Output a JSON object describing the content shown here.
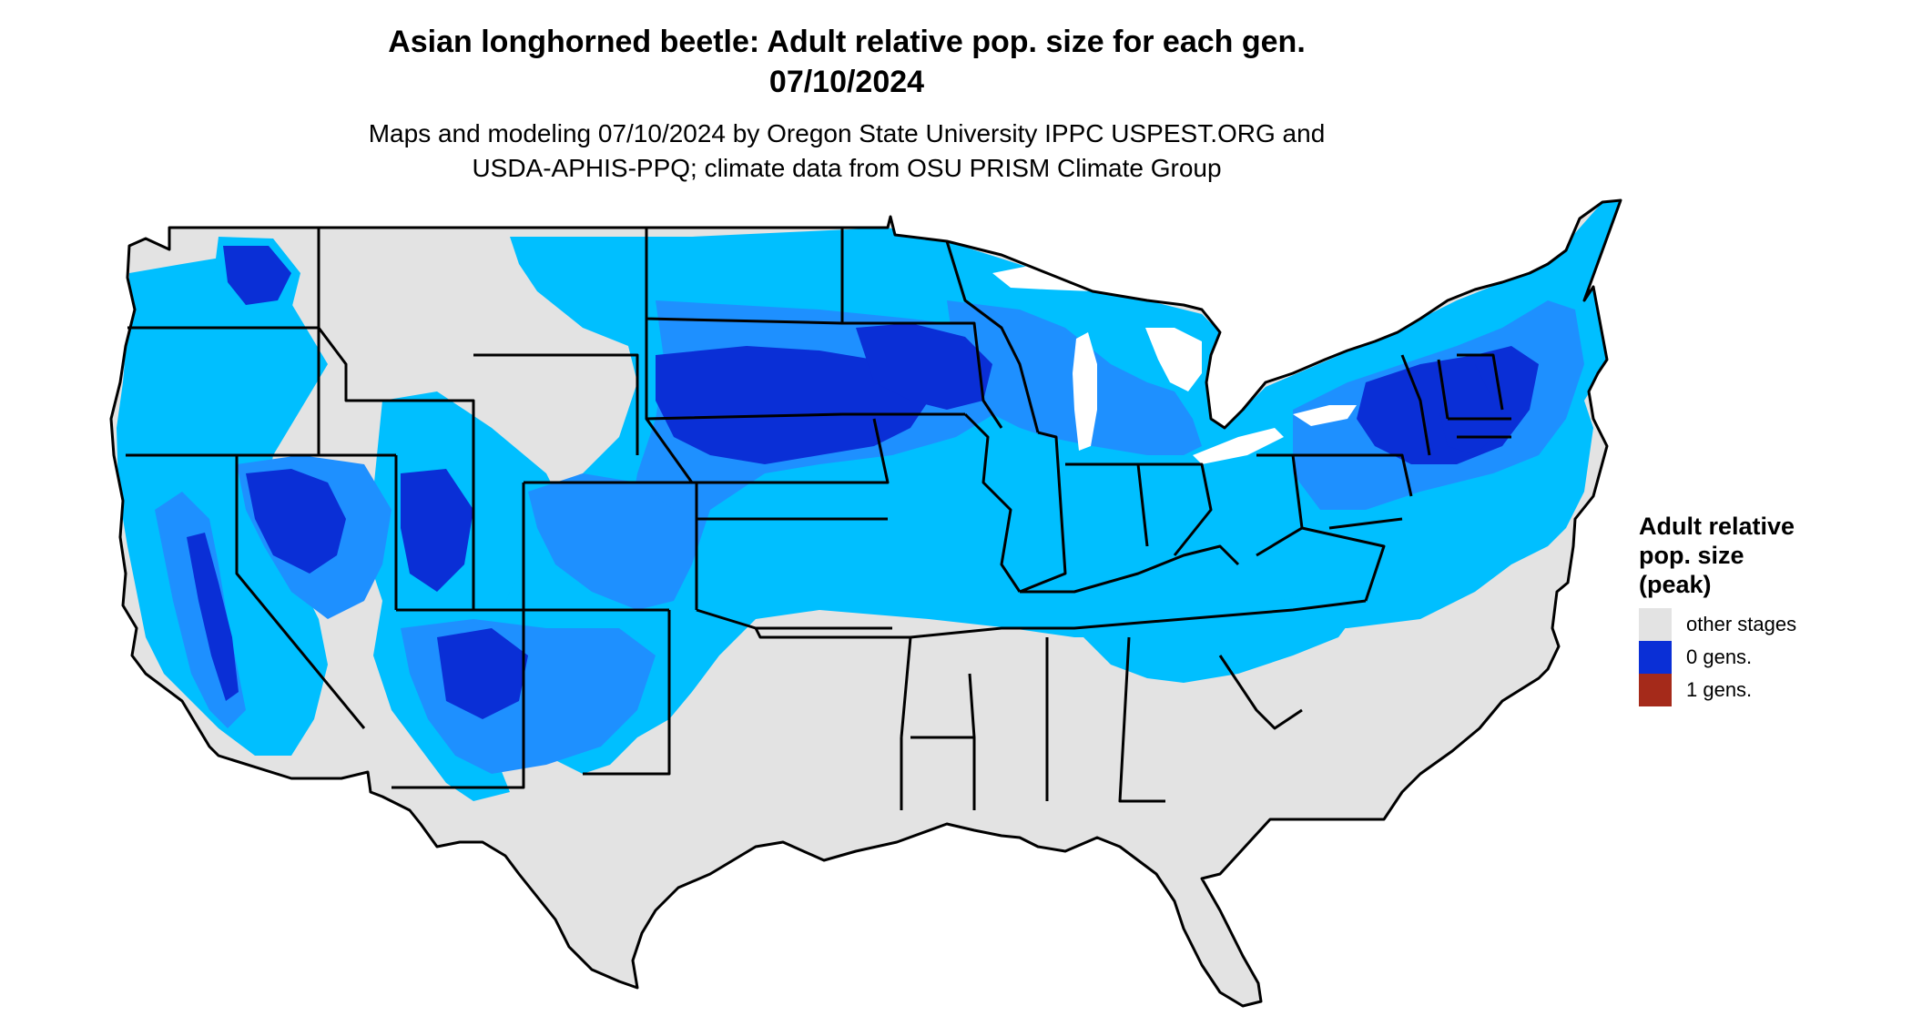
{
  "title_line1": "Asian longhorned beetle: Adult relative pop. size for each gen.",
  "title_line2": "07/10/2024",
  "subtitle_line1": "Maps and modeling 07/10/2024 by Oregon State University IPPC USPEST.ORG and",
  "subtitle_line2": "USDA-APHIS-PPQ; climate data from OSU PRISM Climate Group",
  "map": {
    "region": "Contiguous United States",
    "colors": {
      "other_stages": "#e3e3e3",
      "light_blue": "#00bfff",
      "mid_blue": "#1e90ff",
      "zero_gens": "#0a2fd6",
      "one_gens": "#a52a1a",
      "borders": "#000000"
    }
  },
  "legend": {
    "title": [
      "Adult relative",
      "pop. size",
      "(peak)"
    ],
    "items": [
      {
        "label": "other stages",
        "color": "#e3e3e3"
      },
      {
        "label": "0 gens.",
        "color": "#0a2fd6"
      },
      {
        "label": "1 gens.",
        "color": "#a52a1a"
      }
    ]
  }
}
